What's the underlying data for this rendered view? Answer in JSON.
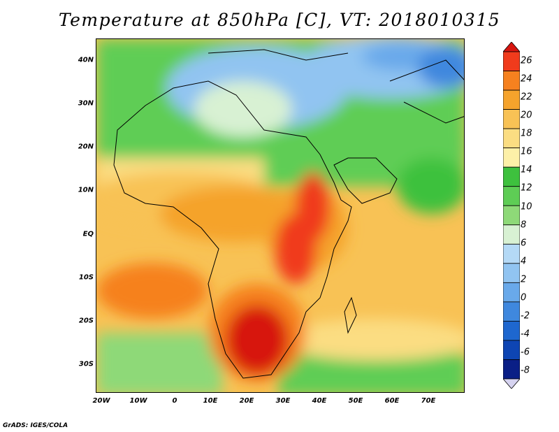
{
  "title": "Temperature at 850hPa [C], VT: 2018010315",
  "credit": "GrADS: IGES/COLA",
  "chart_data": {
    "type": "heatmap",
    "title": "Temperature at 850hPa [C], VT: 2018010315",
    "units": "C",
    "valid_time": "2018010315",
    "lon_range": [
      -25,
      80
    ],
    "lat_range": [
      -37,
      45
    ],
    "lat_ticks": [
      {
        "value": 40,
        "label": "40N"
      },
      {
        "value": 30,
        "label": "30N"
      },
      {
        "value": 20,
        "label": "20N"
      },
      {
        "value": 10,
        "label": "10N"
      },
      {
        "value": 0,
        "label": "EQ"
      },
      {
        "value": -10,
        "label": "10S"
      },
      {
        "value": -20,
        "label": "20S"
      },
      {
        "value": -30,
        "label": "30S"
      }
    ],
    "lon_ticks": [
      {
        "value": -20,
        "label": "20W"
      },
      {
        "value": -10,
        "label": "10W"
      },
      {
        "value": 0,
        "label": "0"
      },
      {
        "value": 10,
        "label": "10E"
      },
      {
        "value": 20,
        "label": "20E"
      },
      {
        "value": 30,
        "label": "30E"
      },
      {
        "value": 40,
        "label": "40E"
      },
      {
        "value": 50,
        "label": "50E"
      },
      {
        "value": 60,
        "label": "60E"
      },
      {
        "value": 70,
        "label": "70E"
      }
    ],
    "colorbar": {
      "levels": [
        "26",
        "24",
        "22",
        "20",
        "18",
        "16",
        "14",
        "12",
        "10",
        "8",
        "6",
        "4",
        "2",
        "0",
        "-2",
        "-4",
        "-6",
        "-8"
      ],
      "colors": [
        "#d7150f",
        "#f03b1c",
        "#f6811f",
        "#f5a32c",
        "#f8c255",
        "#fbdd82",
        "#fdf0a8",
        "#3ec13e",
        "#5ecd55",
        "#8ed978",
        "#d8f1d3",
        "#b4d9f6",
        "#91c4f1",
        "#69a9ea",
        "#3f88de",
        "#1e67cf",
        "#0e45b3",
        "#0a1f86",
        "#d6d3f0"
      ]
    }
  }
}
